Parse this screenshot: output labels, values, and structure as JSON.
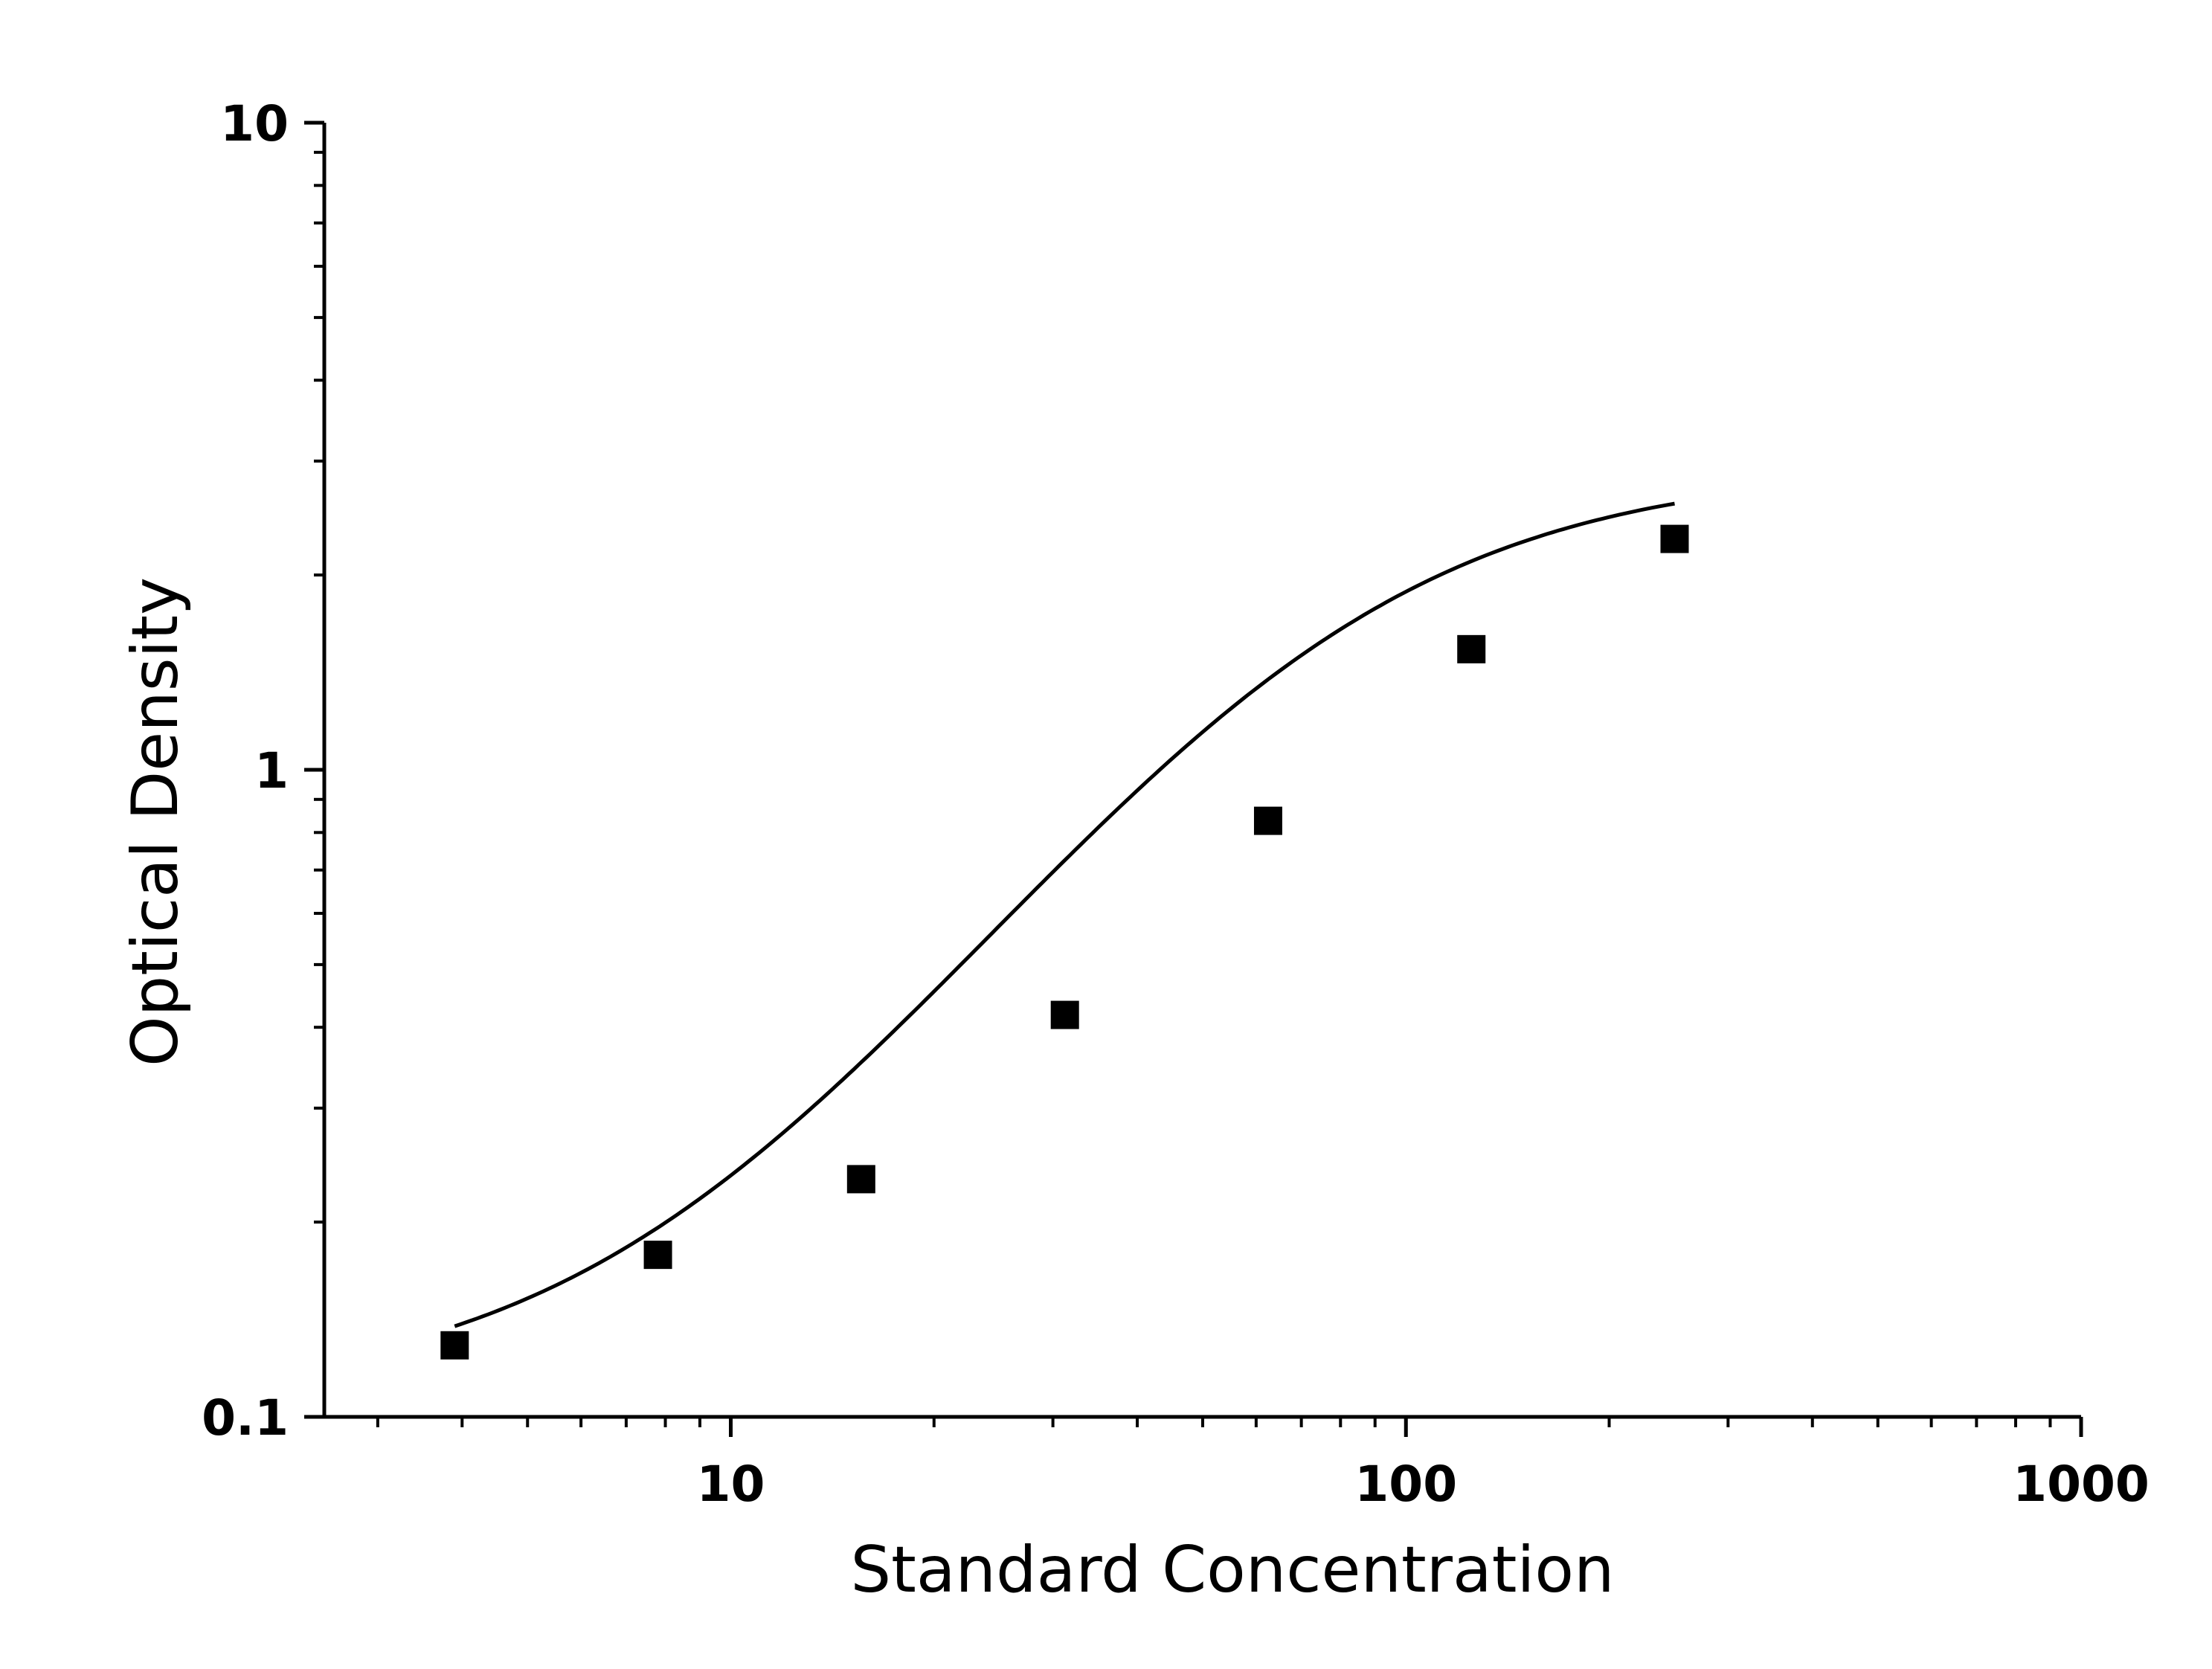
{
  "chart_data": {
    "type": "scatter",
    "title": "",
    "xlabel": "Standard Concentration",
    "ylabel": "Optical Density",
    "x_scale": "log",
    "y_scale": "log",
    "xlim": [
      2.5,
      1000
    ],
    "ylim": [
      0.1,
      10
    ],
    "x_ticks": [
      {
        "value": 10,
        "label": "10"
      },
      {
        "value": 100,
        "label": "100"
      },
      {
        "value": 1000,
        "label": "1000"
      }
    ],
    "y_ticks": [
      {
        "value": 0.1,
        "label": "0.1"
      },
      {
        "value": 1,
        "label": "1"
      },
      {
        "value": 10,
        "label": "10"
      }
    ],
    "grid": false,
    "legend": "none",
    "series": [
      {
        "marker": "square",
        "color": "#000000",
        "x": [
          3.9,
          7.8,
          15.6,
          31.25,
          62.5,
          125,
          250
        ],
        "y": [
          0.129,
          0.178,
          0.233,
          0.418,
          0.834,
          1.536,
          2.274
        ]
      }
    ],
    "fit_curve": {
      "type": "4PL",
      "color": "#000000",
      "a": 0.107,
      "b": 1.55,
      "c": 71,
      "d": 2.93,
      "x_range": [
        3.9,
        250
      ]
    }
  }
}
